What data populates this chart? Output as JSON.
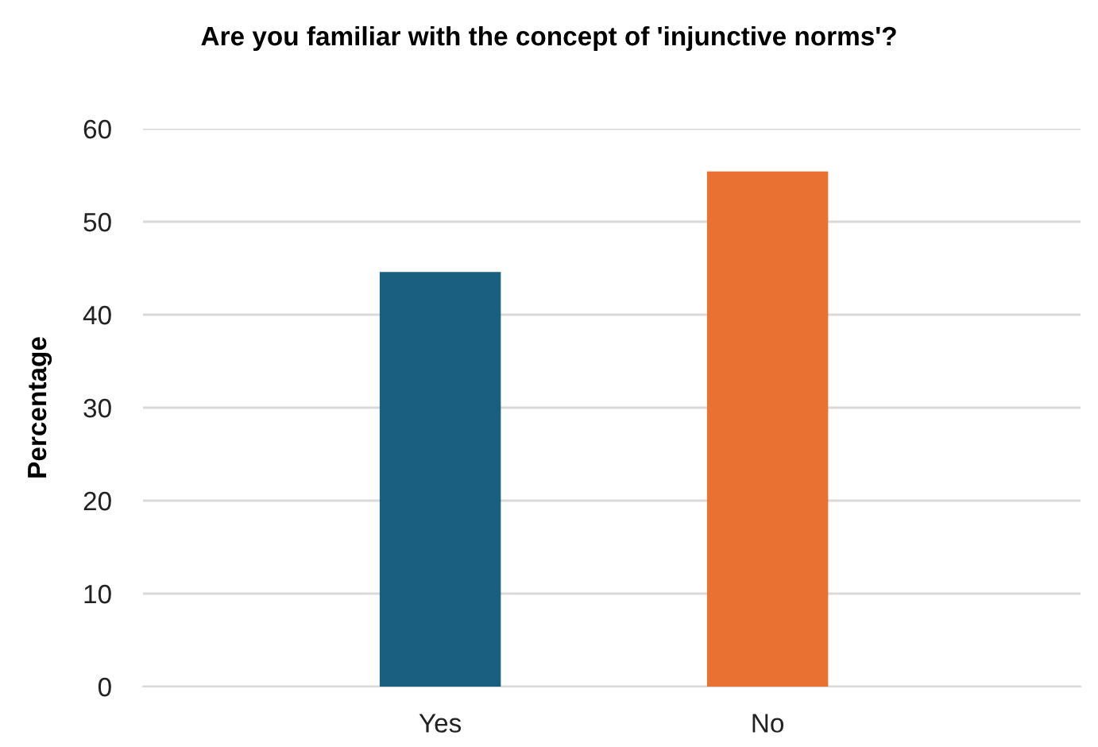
{
  "chart_data": {
    "type": "bar",
    "title": "Are you familiar with the concept of 'injunctive norms'?",
    "ylabel": "Percentage",
    "categories": [
      "Yes",
      "No"
    ],
    "values": [
      44.6,
      55.4
    ],
    "colors": [
      "#1a5f7f",
      "#e97132"
    ],
    "ylim": [
      0,
      60
    ],
    "yticks": [
      0,
      10,
      20,
      30,
      40,
      50,
      60
    ],
    "grid": "y",
    "legend": false
  }
}
